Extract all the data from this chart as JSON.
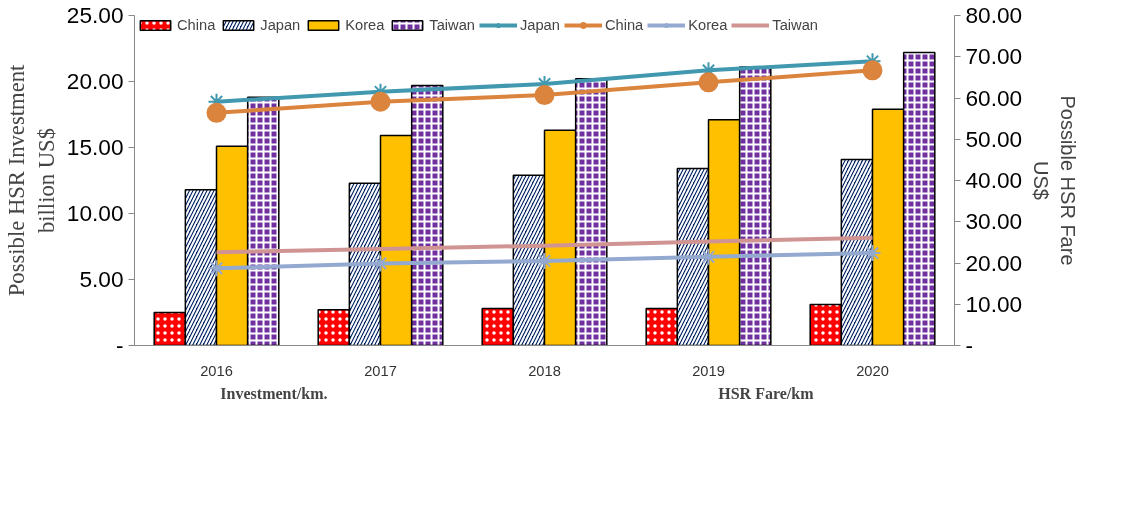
{
  "chart_data": {
    "type": "bar",
    "categories": [
      "2016",
      "2017",
      "2018",
      "2019",
      "2020"
    ],
    "ylabel": "Possible HSR Investment\nbillion US$",
    "y2label": "Possible HSR Fare\nUS$",
    "annotations": [
      "Investment/km.",
      "HSR Fare/km"
    ],
    "ylim": [
      0,
      25
    ],
    "yticks": [
      {
        "value": 0,
        "label": "-"
      },
      {
        "value": 5,
        "label": "5.00"
      },
      {
        "value": 10,
        "label": "10.00"
      },
      {
        "value": 15,
        "label": "15.00"
      },
      {
        "value": 20,
        "label": "20.00"
      },
      {
        "value": 25,
        "label": "25.00"
      }
    ],
    "y2lim": [
      0,
      80
    ],
    "y2ticks": [
      {
        "value": 0,
        "label": "-"
      },
      {
        "value": 10,
        "label": "10.00"
      },
      {
        "value": 20,
        "label": "20.00"
      },
      {
        "value": 30,
        "label": "30.00"
      },
      {
        "value": 40,
        "label": "40.00"
      },
      {
        "value": 50,
        "label": "50.00"
      },
      {
        "value": 60,
        "label": "60.00"
      },
      {
        "value": 70,
        "label": "70.00"
      },
      {
        "value": 80,
        "label": "80.00"
      }
    ],
    "grid": false,
    "legend": "top left",
    "series": [
      {
        "name": "China",
        "color": "#ff0000",
        "values": [
          2.5,
          2.7,
          2.8,
          2.8,
          3.1
        ]
      },
      {
        "name": "Japan",
        "color": "#002060",
        "values": [
          11.8,
          12.3,
          12.9,
          13.4,
          14.1
        ]
      },
      {
        "name": "Korea",
        "color": "#ffc000",
        "values": [
          15.1,
          15.9,
          16.3,
          17.1,
          17.9
        ]
      },
      {
        "name": "Taiwan",
        "color": "#7030a0",
        "values": [
          18.8,
          19.7,
          20.2,
          21.1,
          22.2
        ]
      },
      {
        "name": "Japan",
        "type": "line",
        "axis": "y2",
        "marker": "cross",
        "color": "#4198af",
        "values": [
          59.1,
          61.5,
          63.4,
          66.7,
          68.9
        ]
      },
      {
        "name": "China",
        "type": "line",
        "axis": "y2",
        "marker": "circle",
        "color": "#db843d",
        "values": [
          56.4,
          59.1,
          60.7,
          63.8,
          66.7
        ]
      },
      {
        "name": "Korea",
        "type": "line",
        "axis": "y2",
        "marker": "cross",
        "color": "#93a9cf",
        "values": [
          18.7,
          19.9,
          20.5,
          21.5,
          22.4
        ]
      },
      {
        "name": "Taiwan",
        "type": "line",
        "axis": "y2",
        "marker": "none",
        "color": "#d09493",
        "values": [
          22.6,
          23.4,
          24.2,
          25.2,
          26.1
        ]
      }
    ]
  }
}
